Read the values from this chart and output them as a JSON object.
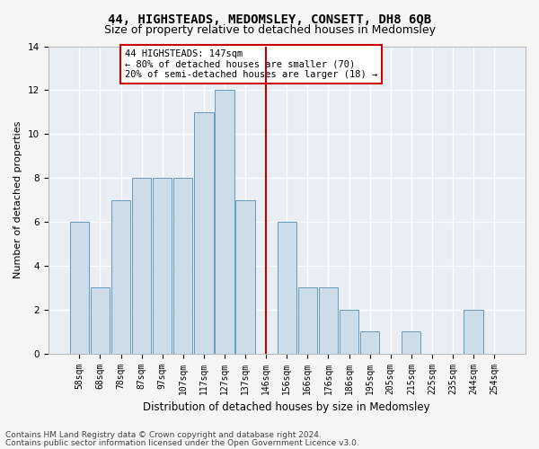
{
  "title": "44, HIGHSTEADS, MEDOMSLEY, CONSETT, DH8 6QB",
  "subtitle": "Size of property relative to detached houses in Medomsley",
  "xlabel": "Distribution of detached houses by size in Medomsley",
  "ylabel": "Number of detached properties",
  "bar_labels": [
    "58sqm",
    "68sqm",
    "78sqm",
    "87sqm",
    "97sqm",
    "107sqm",
    "117sqm",
    "127sqm",
    "137sqm",
    "146sqm",
    "156sqm",
    "166sqm",
    "176sqm",
    "186sqm",
    "195sqm",
    "205sqm",
    "215sqm",
    "225sqm",
    "235sqm",
    "244sqm",
    "254sqm"
  ],
  "bar_values": [
    6,
    3,
    7,
    8,
    8,
    8,
    11,
    12,
    7,
    0,
    6,
    3,
    3,
    2,
    1,
    0,
    1,
    0,
    0,
    2,
    0
  ],
  "bar_color": "#ccdce8",
  "bar_edge_color": "#6699bb",
  "vline_x": 9,
  "vline_color": "#bb0000",
  "ylim": [
    0,
    14
  ],
  "yticks": [
    0,
    2,
    4,
    6,
    8,
    10,
    12,
    14
  ],
  "annotation_text": "44 HIGHSTEADS: 147sqm\n← 80% of detached houses are smaller (70)\n20% of semi-detached houses are larger (18) →",
  "annotation_box_color": "#ffffff",
  "annotation_box_edge": "#cc0000",
  "footer_line1": "Contains HM Land Registry data © Crown copyright and database right 2024.",
  "footer_line2": "Contains public sector information licensed under the Open Government Licence v3.0.",
  "background_color": "#e8eef4",
  "grid_color": "#ffffff",
  "title_fontsize": 10,
  "subtitle_fontsize": 9,
  "ylabel_fontsize": 8,
  "xlabel_fontsize": 8.5,
  "tick_fontsize": 7,
  "annotation_fontsize": 7.5,
  "footer_fontsize": 6.5
}
